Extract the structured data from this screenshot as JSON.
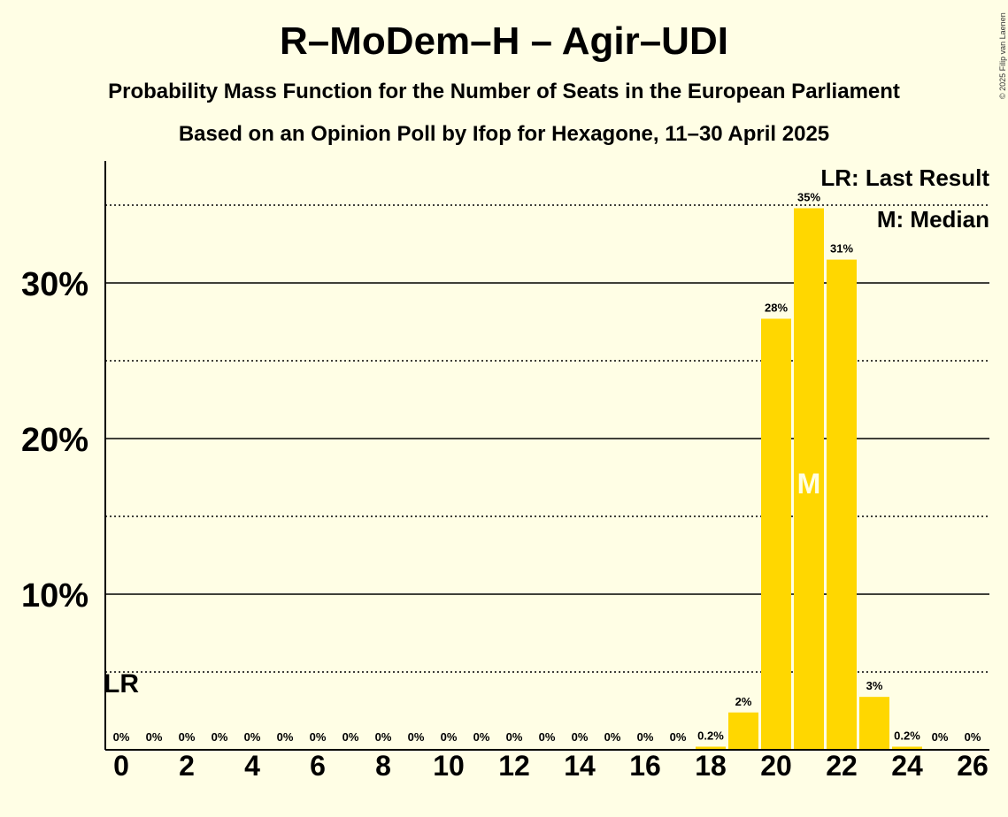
{
  "header": {
    "title": "R–MoDem–H – Agir–UDI",
    "subtitle1": "Probability Mass Function for the Number of Seats in the European Parliament",
    "subtitle2": "Based on an Opinion Poll by Ifop for Hexagone, 11–30 April 2025",
    "credit": "© 2025 Filip van Laenen"
  },
  "colors": {
    "bar": "#FFD700",
    "background": "#FFFEE5",
    "median_label": "#FFFEE5"
  },
  "chart_data": {
    "type": "bar",
    "categories": [
      0,
      1,
      2,
      3,
      4,
      5,
      6,
      7,
      8,
      9,
      10,
      11,
      12,
      13,
      14,
      15,
      16,
      17,
      18,
      19,
      20,
      21,
      22,
      23,
      24,
      25,
      26
    ],
    "values": [
      0,
      0,
      0,
      0,
      0,
      0,
      0,
      0,
      0,
      0,
      0,
      0,
      0,
      0,
      0,
      0,
      0,
      0,
      0.2,
      2.4,
      27.7,
      34.8,
      31.5,
      3.4,
      0.2,
      0,
      0
    ],
    "data_labels": [
      "0%",
      "0%",
      "0%",
      "0%",
      "0%",
      "0%",
      "0%",
      "0%",
      "0%",
      "0%",
      "0%",
      "0%",
      "0%",
      "0%",
      "0%",
      "0%",
      "0%",
      "0%",
      "0.2%",
      "2%",
      "28%",
      "35%",
      "31%",
      "3%",
      "0.2%",
      "0%",
      "0%"
    ],
    "x_tick_labels": [
      "0",
      "2",
      "4",
      "6",
      "8",
      "10",
      "12",
      "14",
      "16",
      "18",
      "20",
      "22",
      "24",
      "26"
    ],
    "y_tick_labels": [
      "10%",
      "20%",
      "30%"
    ],
    "ylim": [
      0,
      38
    ],
    "major_gridlines": [
      10,
      20,
      30
    ],
    "minor_gridlines": [
      5,
      15,
      25,
      35
    ],
    "last_result_seat": 0,
    "median_seat": 21,
    "last_result_marker": "LR",
    "median_marker": "M",
    "legend": {
      "last_result": "LR: Last Result",
      "median": "M: Median",
      "placement": "top-right"
    }
  }
}
